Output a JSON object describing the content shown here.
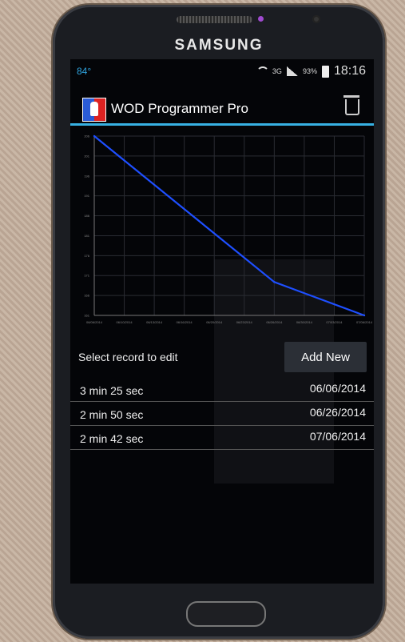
{
  "device": {
    "brand": "SAMSUNG"
  },
  "status_bar": {
    "temperature": "84°",
    "network": "3G",
    "battery": "93%",
    "time": "18:16"
  },
  "app": {
    "title": "WOD Programmer Pro"
  },
  "chart_data": {
    "type": "line",
    "x": [
      "06/06/2014",
      "06/26/2014",
      "07/06/2014"
    ],
    "values_seconds": [
      205,
      170,
      162
    ],
    "tick_labels_x": [
      "06/06/2014",
      "06/10/2014",
      "06/13/2014",
      "06/16/2014",
      "06/20/2014",
      "06/23/2014",
      "06/26/2014",
      "06/30/2014",
      "07/03/2014",
      "07/06/2014"
    ],
    "tick_labels_y": [
      "206",
      "201",
      "196",
      "191",
      "186",
      "181",
      "176",
      "171",
      "166",
      "161"
    ],
    "color": "#1e4fff"
  },
  "controls": {
    "select_label": "Select record to edit",
    "add_button": "Add New"
  },
  "records": [
    {
      "time": "3 min 25 sec",
      "date": "06/06/2014"
    },
    {
      "time": "2 min 50 sec",
      "date": "06/26/2014"
    },
    {
      "time": "2 min 42 sec",
      "date": "07/06/2014"
    }
  ]
}
